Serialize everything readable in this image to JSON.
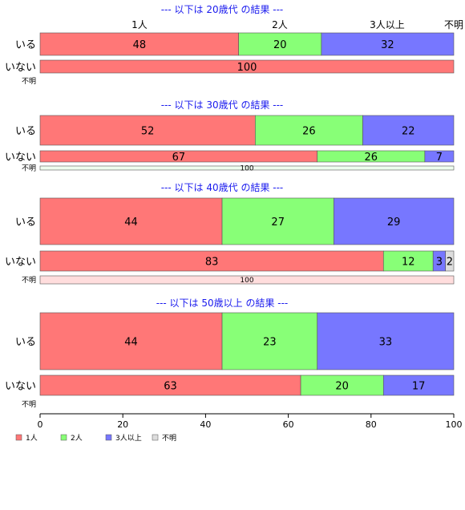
{
  "chart_data": {
    "type": "bar",
    "orientation": "horizontal",
    "stacked": true,
    "legend": [
      "1人",
      "2人",
      "3人以上",
      "不明"
    ],
    "legend_position": "bottom-left",
    "column_headers": [
      "1人",
      "2人",
      "3人以上",
      "不明"
    ],
    "colors": {
      "1人": "#ff7777",
      "2人": "#88ff77",
      "3人以上": "#7777ff",
      "不明": "#dddddd"
    },
    "xlim": [
      0,
      100
    ],
    "xticks": [
      "0",
      "20",
      "40",
      "60",
      "80",
      "100"
    ],
    "groups": [
      {
        "title": "--- 以下は 20歳代 の結果 ---",
        "rows": [
          {
            "label": "いる",
            "values": [
              48,
              20,
              32,
              0
            ]
          },
          {
            "label": "いない",
            "values": [
              100,
              0,
              0,
              0
            ]
          },
          {
            "label": "不明",
            "values": [
              0,
              0,
              0,
              0
            ]
          }
        ]
      },
      {
        "title": "--- 以下は 30歳代 の結果 ---",
        "rows": [
          {
            "label": "いる",
            "values": [
              52,
              26,
              22,
              0
            ]
          },
          {
            "label": "いない",
            "values": [
              67,
              26,
              7,
              0
            ]
          },
          {
            "label": "不明",
            "values": [
              0,
              100,
              0,
              0
            ]
          }
        ]
      },
      {
        "title": "--- 以下は 40歳代 の結果 ---",
        "rows": [
          {
            "label": "いる",
            "values": [
              44,
              27,
              29,
              0
            ]
          },
          {
            "label": "いない",
            "values": [
              83,
              12,
              3,
              2
            ]
          },
          {
            "label": "不明",
            "values": [
              100,
              0,
              0,
              0
            ]
          }
        ]
      },
      {
        "title": "--- 以下は 50歳以上 の結果 ---",
        "rows": [
          {
            "label": "いる",
            "values": [
              44,
              23,
              33,
              0
            ]
          },
          {
            "label": "いない",
            "values": [
              63,
              20,
              17,
              0
            ]
          },
          {
            "label": "不明",
            "values": [
              0,
              0,
              0,
              0
            ]
          }
        ]
      }
    ]
  }
}
